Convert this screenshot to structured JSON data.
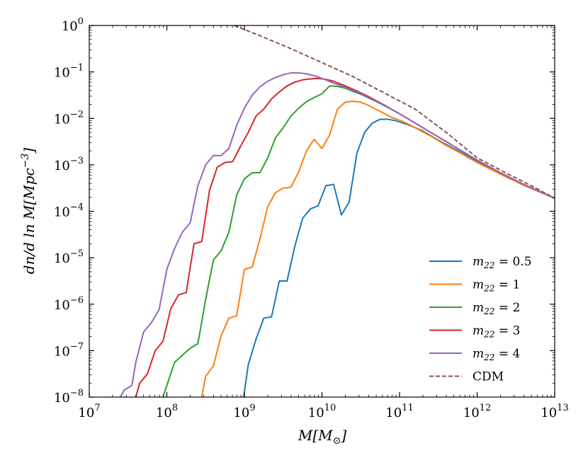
{
  "chart_data": {
    "type": "line",
    "title": "",
    "xlabel": {
      "base": "M[M",
      "sub": "⊙",
      "end": "]"
    },
    "ylabel": {
      "pre": "dn/d ln M[Mpc",
      "sup": "−3",
      "end": "]"
    },
    "xscale": "log",
    "yscale": "log",
    "xlim_exp": [
      7,
      13
    ],
    "ylim_exp": [
      -8,
      0
    ],
    "x_ticks": [
      {
        "base": "10",
        "exp": "7"
      },
      {
        "base": "10",
        "exp": "8"
      },
      {
        "base": "10",
        "exp": "9"
      },
      {
        "base": "10",
        "exp": "10"
      },
      {
        "base": "10",
        "exp": "11"
      },
      {
        "base": "10",
        "exp": "12"
      },
      {
        "base": "10",
        "exp": "13"
      }
    ],
    "y_ticks": [
      {
        "base": "10",
        "exp": "−8"
      },
      {
        "base": "10",
        "exp": "−7"
      },
      {
        "base": "10",
        "exp": "−6"
      },
      {
        "base": "10",
        "exp": "−5"
      },
      {
        "base": "10",
        "exp": "−4"
      },
      {
        "base": "10",
        "exp": "−3"
      },
      {
        "base": "10",
        "exp": "−2"
      },
      {
        "base": "10",
        "exp": "−1"
      },
      {
        "base": "10",
        "exp": "0"
      }
    ],
    "legend_position": "lower-right",
    "series": [
      {
        "name": "m22 = 0.5",
        "label_main": "m",
        "label_sub": "22",
        "label_val": " = 0.5",
        "color": "#1f77b4",
        "dashed": false,
        "points": [
          [
            8.99,
            -8.0
          ],
          [
            9.05,
            -7.3
          ],
          [
            9.15,
            -6.75
          ],
          [
            9.25,
            -6.3
          ],
          [
            9.35,
            -6.27
          ],
          [
            9.45,
            -5.5
          ],
          [
            9.55,
            -5.5
          ],
          [
            9.65,
            -4.75
          ],
          [
            9.75,
            -4.15
          ],
          [
            9.85,
            -3.95
          ],
          [
            9.95,
            -3.88
          ],
          [
            10.05,
            -3.45
          ],
          [
            10.15,
            -3.42
          ],
          [
            10.25,
            -4.08
          ],
          [
            10.35,
            -3.8
          ],
          [
            10.45,
            -2.75
          ],
          [
            10.55,
            -2.3
          ],
          [
            10.65,
            -2.1
          ],
          [
            10.75,
            -2.02
          ],
          [
            10.85,
            -2.02
          ],
          [
            10.95,
            -2.05
          ],
          [
            11.1,
            -2.13
          ],
          [
            11.3,
            -2.27
          ],
          [
            11.5,
            -2.47
          ],
          [
            11.7,
            -2.65
          ],
          [
            11.9,
            -2.83
          ],
          [
            12.1,
            -3.02
          ],
          [
            12.4,
            -3.28
          ],
          [
            12.7,
            -3.5
          ],
          [
            13.0,
            -3.72
          ]
        ]
      },
      {
        "name": "m22 = 1",
        "label_main": "m",
        "label_sub": "22",
        "label_val": " = 1",
        "color": "#ff7f0e",
        "dashed": false,
        "points": [
          [
            8.45,
            -8.0
          ],
          [
            8.5,
            -7.55
          ],
          [
            8.6,
            -7.33
          ],
          [
            8.7,
            -6.68
          ],
          [
            8.8,
            -6.3
          ],
          [
            8.9,
            -6.25
          ],
          [
            9.0,
            -5.25
          ],
          [
            9.1,
            -5.2
          ],
          [
            9.2,
            -4.6
          ],
          [
            9.3,
            -3.9
          ],
          [
            9.4,
            -3.6
          ],
          [
            9.5,
            -3.5
          ],
          [
            9.6,
            -3.48
          ],
          [
            9.7,
            -3.15
          ],
          [
            9.8,
            -2.7
          ],
          [
            9.9,
            -2.45
          ],
          [
            10.0,
            -2.65
          ],
          [
            10.1,
            -2.35
          ],
          [
            10.2,
            -1.8
          ],
          [
            10.3,
            -1.65
          ],
          [
            10.4,
            -1.63
          ],
          [
            10.5,
            -1.65
          ],
          [
            10.6,
            -1.72
          ],
          [
            10.75,
            -1.85
          ],
          [
            10.9,
            -1.98
          ],
          [
            11.05,
            -2.07
          ],
          [
            11.2,
            -2.2
          ],
          [
            11.4,
            -2.38
          ],
          [
            11.6,
            -2.58
          ],
          [
            11.8,
            -2.76
          ],
          [
            12.0,
            -2.95
          ],
          [
            12.3,
            -3.2
          ],
          [
            12.6,
            -3.44
          ],
          [
            13.0,
            -3.72
          ]
        ]
      },
      {
        "name": "m22 = 2",
        "label_main": "m",
        "label_sub": "22",
        "label_val": " = 2",
        "color": "#2ca02c",
        "dashed": false,
        "points": [
          [
            7.95,
            -8.0
          ],
          [
            8.0,
            -7.75
          ],
          [
            8.1,
            -7.25
          ],
          [
            8.2,
            -7.1
          ],
          [
            8.3,
            -6.95
          ],
          [
            8.4,
            -6.85
          ],
          [
            8.5,
            -5.9
          ],
          [
            8.6,
            -5.05
          ],
          [
            8.7,
            -4.85
          ],
          [
            8.8,
            -4.45
          ],
          [
            8.9,
            -3.65
          ],
          [
            9.0,
            -3.3
          ],
          [
            9.1,
            -3.17
          ],
          [
            9.2,
            -3.17
          ],
          [
            9.3,
            -2.85
          ],
          [
            9.4,
            -2.42
          ],
          [
            9.5,
            -2.2
          ],
          [
            9.6,
            -1.95
          ],
          [
            9.7,
            -1.78
          ],
          [
            9.8,
            -1.64
          ],
          [
            9.9,
            -1.55
          ],
          [
            10.0,
            -1.47
          ],
          [
            10.1,
            -1.3
          ],
          [
            10.2,
            -1.31
          ],
          [
            10.3,
            -1.35
          ],
          [
            10.4,
            -1.42
          ],
          [
            10.5,
            -1.48
          ],
          [
            10.6,
            -1.56
          ],
          [
            10.75,
            -1.68
          ],
          [
            10.9,
            -1.81
          ],
          [
            11.05,
            -1.95
          ],
          [
            11.2,
            -2.1
          ],
          [
            11.4,
            -2.3
          ],
          [
            11.6,
            -2.5
          ],
          [
            11.8,
            -2.7
          ],
          [
            12.0,
            -2.9
          ],
          [
            12.3,
            -3.17
          ],
          [
            12.6,
            -3.42
          ],
          [
            13.0,
            -3.72
          ]
        ]
      },
      {
        "name": "m22 = 3",
        "label_main": "m",
        "label_sub": "22",
        "label_val": " = 3",
        "color": "#d62728",
        "dashed": false,
        "points": [
          [
            7.6,
            -8.0
          ],
          [
            7.65,
            -7.7
          ],
          [
            7.75,
            -7.5
          ],
          [
            7.85,
            -7.0
          ],
          [
            7.95,
            -6.8
          ],
          [
            8.05,
            -6.1
          ],
          [
            8.15,
            -5.8
          ],
          [
            8.25,
            -5.75
          ],
          [
            8.35,
            -4.7
          ],
          [
            8.45,
            -4.65
          ],
          [
            8.55,
            -3.55
          ],
          [
            8.65,
            -3.05
          ],
          [
            8.75,
            -2.95
          ],
          [
            8.85,
            -2.93
          ],
          [
            8.95,
            -2.6
          ],
          [
            9.05,
            -2.3
          ],
          [
            9.15,
            -1.95
          ],
          [
            9.25,
            -1.8
          ],
          [
            9.35,
            -1.58
          ],
          [
            9.45,
            -1.43
          ],
          [
            9.55,
            -1.3
          ],
          [
            9.65,
            -1.22
          ],
          [
            9.75,
            -1.17
          ],
          [
            9.85,
            -1.15
          ],
          [
            9.95,
            -1.14
          ],
          [
            10.05,
            -1.16
          ],
          [
            10.15,
            -1.2
          ],
          [
            10.3,
            -1.3
          ],
          [
            10.45,
            -1.41
          ],
          [
            10.6,
            -1.53
          ],
          [
            10.8,
            -1.71
          ],
          [
            11.0,
            -1.9
          ],
          [
            11.2,
            -2.1
          ],
          [
            11.4,
            -2.3
          ],
          [
            11.6,
            -2.5
          ],
          [
            11.8,
            -2.7
          ],
          [
            12.0,
            -2.9
          ],
          [
            12.3,
            -3.17
          ],
          [
            12.6,
            -3.42
          ],
          [
            13.0,
            -3.72
          ]
        ]
      },
      {
        "name": "m22 = 4",
        "label_main": "m",
        "label_sub": "22",
        "label_val": " = 4",
        "color": "#9467bd",
        "dashed": false,
        "points": [
          [
            7.4,
            -8.0
          ],
          [
            7.45,
            -7.85
          ],
          [
            7.55,
            -7.75
          ],
          [
            7.6,
            -7.25
          ],
          [
            7.7,
            -6.6
          ],
          [
            7.8,
            -6.4
          ],
          [
            7.9,
            -6.12
          ],
          [
            8.0,
            -5.25
          ],
          [
            8.1,
            -4.8
          ],
          [
            8.2,
            -4.45
          ],
          [
            8.3,
            -4.25
          ],
          [
            8.4,
            -3.45
          ],
          [
            8.5,
            -3.0
          ],
          [
            8.6,
            -2.8
          ],
          [
            8.7,
            -2.8
          ],
          [
            8.8,
            -2.65
          ],
          [
            8.9,
            -2.15
          ],
          [
            9.0,
            -1.78
          ],
          [
            9.1,
            -1.5
          ],
          [
            9.2,
            -1.32
          ],
          [
            9.3,
            -1.2
          ],
          [
            9.4,
            -1.12
          ],
          [
            9.5,
            -1.06
          ],
          [
            9.6,
            -1.02
          ],
          [
            9.7,
            -1.02
          ],
          [
            9.8,
            -1.04
          ],
          [
            9.9,
            -1.08
          ],
          [
            10.0,
            -1.14
          ],
          [
            10.15,
            -1.24
          ],
          [
            10.3,
            -1.33
          ],
          [
            10.45,
            -1.43
          ],
          [
            10.6,
            -1.55
          ],
          [
            10.8,
            -1.72
          ],
          [
            11.0,
            -1.9
          ],
          [
            11.2,
            -2.1
          ],
          [
            11.4,
            -2.3
          ],
          [
            11.6,
            -2.5
          ],
          [
            11.8,
            -2.7
          ],
          [
            12.0,
            -2.9
          ],
          [
            12.3,
            -3.17
          ],
          [
            12.6,
            -3.42
          ],
          [
            13.0,
            -3.72
          ]
        ]
      },
      {
        "name": "CDM",
        "label_main": "",
        "label_sub": "",
        "label_val": "CDM",
        "color": "#8c564b",
        "dashed": true,
        "points": [
          [
            8.87,
            0.0
          ],
          [
            9.2,
            -0.22
          ],
          [
            9.6,
            -0.5
          ],
          [
            10.0,
            -0.8
          ],
          [
            10.4,
            -1.1
          ],
          [
            10.8,
            -1.45
          ],
          [
            11.2,
            -1.8
          ],
          [
            11.6,
            -2.3
          ],
          [
            12.0,
            -2.85
          ],
          [
            12.4,
            -3.2
          ],
          [
            12.7,
            -3.45
          ],
          [
            13.0,
            -3.72
          ]
        ]
      }
    ]
  }
}
